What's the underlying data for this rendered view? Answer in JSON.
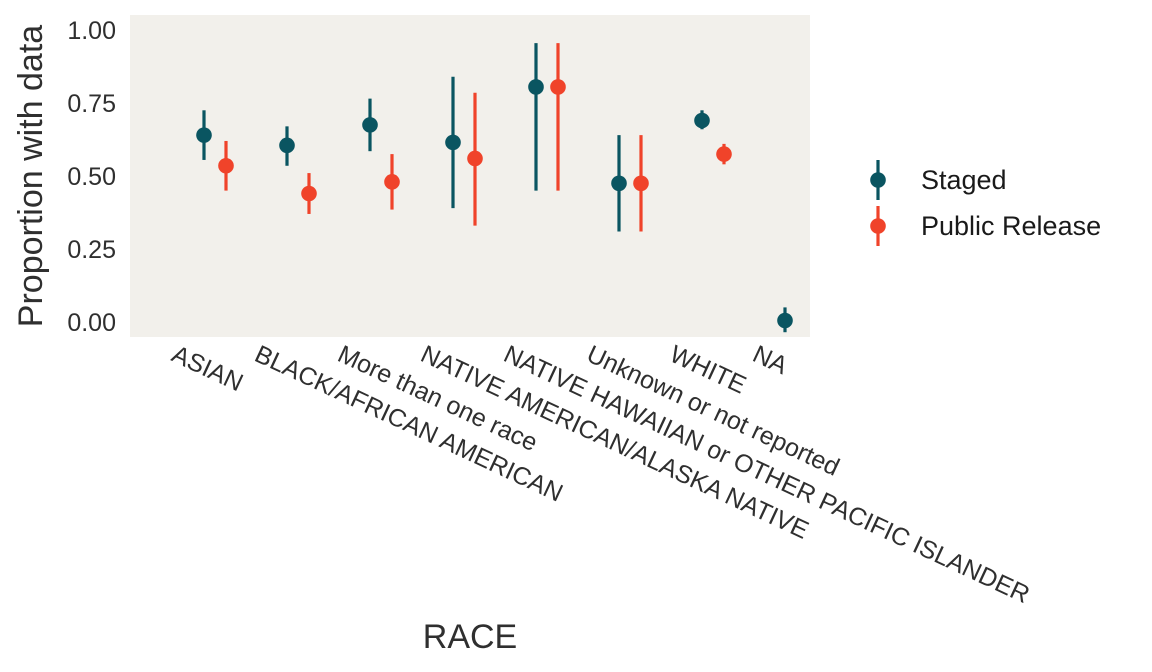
{
  "chart_data": {
    "type": "scatter",
    "subtype": "pointrange-dodged",
    "xlabel": "RACE",
    "ylabel": "Proportion with data",
    "ylim": [
      -0.04,
      1.05
    ],
    "y_ticks": [
      0.0,
      0.25,
      0.5,
      0.75,
      1.0
    ],
    "y_tick_labels": [
      "0.00",
      "0.25",
      "0.50",
      "0.75",
      "1.00"
    ],
    "categories": [
      "ASIAN",
      "BLACK/AFRICAN AMERICAN",
      "More than one race",
      "NATIVE AMERICAN/ALASKA NATIVE",
      "NATIVE HAWAIIAN or OTHER PACIFIC ISLANDER",
      "Unknown or not reported",
      "WHITE",
      "NA"
    ],
    "grid": false,
    "panel_background": "#f2f0eb",
    "legend_position": "right",
    "series": [
      {
        "name": "Staged",
        "color": "#0a5561",
        "values": [
          0.64,
          0.605,
          0.675,
          0.615,
          0.805,
          0.475,
          0.69,
          0.005
        ],
        "lower": [
          0.555,
          0.535,
          0.585,
          0.39,
          0.45,
          0.31,
          0.66,
          -0.035
        ],
        "upper": [
          0.725,
          0.67,
          0.765,
          0.84,
          0.955,
          0.64,
          0.725,
          0.05
        ]
      },
      {
        "name": "Public Release",
        "color": "#f0432a",
        "values": [
          0.535,
          0.44,
          0.48,
          0.56,
          0.805,
          0.475,
          0.575,
          null
        ],
        "lower": [
          0.45,
          0.37,
          0.385,
          0.33,
          0.45,
          0.31,
          0.54,
          null
        ],
        "upper": [
          0.62,
          0.51,
          0.575,
          0.785,
          0.955,
          0.64,
          0.61,
          null
        ]
      }
    ]
  }
}
